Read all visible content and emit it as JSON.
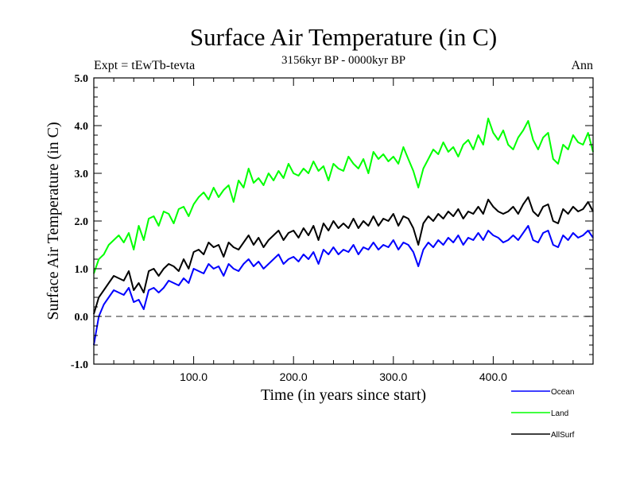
{
  "chart_data": {
    "type": "line",
    "title": "Surface Air Temperature (in C)",
    "subtitle": "3156kyr BP - 0000kyr BP",
    "annotation_left": "Expt = tEwTb-tevta",
    "annotation_right": "Ann",
    "xlabel": "Time (in years since start)",
    "ylabel": "Surface Air Temperature (in C)",
    "xlim": [
      0,
      500
    ],
    "ylim": [
      -1.0,
      5.0
    ],
    "x_major_ticks": [
      100,
      200,
      300,
      400
    ],
    "x_tick_labels": [
      "100.0",
      "200.0",
      "300.0",
      "400.0"
    ],
    "x_minor_step": 20,
    "y_major_ticks": [
      -1,
      0,
      1,
      2,
      3,
      4,
      5
    ],
    "y_tick_labels": [
      "-1.0",
      "0.0",
      "1.0",
      "2.0",
      "3.0",
      "4.0",
      "5.0"
    ],
    "y_minor_step": 0.2,
    "reference_line": {
      "y": 0.0,
      "style": "dashed",
      "color": "#555555"
    },
    "grid": false,
    "legend_position": "bottom-right, below plot",
    "x_step": 5,
    "x_start": 0,
    "series": [
      {
        "name": "Ocean",
        "color": "#0000ff",
        "values": [
          -0.6,
          0.0,
          0.25,
          0.4,
          0.55,
          0.5,
          0.45,
          0.6,
          0.3,
          0.35,
          0.15,
          0.55,
          0.6,
          0.5,
          0.6,
          0.75,
          0.7,
          0.65,
          0.8,
          0.7,
          1.0,
          0.95,
          0.9,
          1.1,
          1.0,
          1.05,
          0.85,
          1.1,
          1.0,
          0.95,
          1.1,
          1.2,
          1.05,
          1.15,
          1.0,
          1.1,
          1.2,
          1.3,
          1.1,
          1.2,
          1.25,
          1.15,
          1.3,
          1.2,
          1.35,
          1.1,
          1.4,
          1.3,
          1.45,
          1.3,
          1.4,
          1.35,
          1.5,
          1.3,
          1.45,
          1.4,
          1.55,
          1.4,
          1.5,
          1.45,
          1.6,
          1.4,
          1.55,
          1.5,
          1.35,
          1.05,
          1.4,
          1.55,
          1.45,
          1.6,
          1.5,
          1.65,
          1.55,
          1.7,
          1.5,
          1.65,
          1.6,
          1.75,
          1.6,
          1.8,
          1.7,
          1.65,
          1.55,
          1.6,
          1.7,
          1.6,
          1.75,
          1.9,
          1.6,
          1.55,
          1.75,
          1.8,
          1.5,
          1.45,
          1.7,
          1.6,
          1.75,
          1.65,
          1.7,
          1.8,
          1.65
        ]
      },
      {
        "name": "Land",
        "color": "#00ff00",
        "values": [
          0.9,
          1.2,
          1.3,
          1.5,
          1.6,
          1.7,
          1.55,
          1.75,
          1.4,
          1.9,
          1.6,
          2.05,
          2.1,
          1.9,
          2.2,
          2.15,
          1.95,
          2.25,
          2.3,
          2.1,
          2.35,
          2.5,
          2.6,
          2.45,
          2.7,
          2.5,
          2.65,
          2.75,
          2.4,
          2.85,
          2.7,
          3.1,
          2.8,
          2.9,
          2.75,
          3.0,
          2.85,
          3.05,
          2.9,
          3.2,
          3.0,
          2.95,
          3.1,
          3.0,
          3.25,
          3.05,
          3.15,
          2.85,
          3.2,
          3.1,
          3.05,
          3.35,
          3.2,
          3.1,
          3.3,
          3.0,
          3.45,
          3.3,
          3.4,
          3.25,
          3.35,
          3.2,
          3.55,
          3.3,
          3.05,
          2.7,
          3.1,
          3.3,
          3.5,
          3.4,
          3.65,
          3.45,
          3.55,
          3.35,
          3.6,
          3.7,
          3.5,
          3.8,
          3.6,
          4.15,
          3.85,
          3.7,
          3.9,
          3.6,
          3.5,
          3.75,
          3.9,
          4.1,
          3.7,
          3.5,
          3.75,
          3.85,
          3.3,
          3.2,
          3.6,
          3.5,
          3.8,
          3.65,
          3.6,
          3.85,
          3.45
        ]
      },
      {
        "name": "AllSurf",
        "color": "#000000",
        "values": [
          0.05,
          0.4,
          0.55,
          0.7,
          0.85,
          0.8,
          0.75,
          0.95,
          0.55,
          0.7,
          0.5,
          0.95,
          1.0,
          0.85,
          1.0,
          1.1,
          1.05,
          0.95,
          1.2,
          1.0,
          1.35,
          1.4,
          1.3,
          1.55,
          1.45,
          1.5,
          1.25,
          1.55,
          1.45,
          1.4,
          1.55,
          1.7,
          1.5,
          1.65,
          1.45,
          1.6,
          1.7,
          1.8,
          1.6,
          1.75,
          1.8,
          1.65,
          1.85,
          1.7,
          1.9,
          1.6,
          1.95,
          1.8,
          2.0,
          1.85,
          1.95,
          1.85,
          2.05,
          1.85,
          2.0,
          1.9,
          2.1,
          1.9,
          2.05,
          2.0,
          2.15,
          1.9,
          2.1,
          2.05,
          1.85,
          1.5,
          1.95,
          2.1,
          2.0,
          2.15,
          2.05,
          2.2,
          2.1,
          2.25,
          2.05,
          2.2,
          2.15,
          2.3,
          2.15,
          2.45,
          2.3,
          2.2,
          2.15,
          2.2,
          2.3,
          2.15,
          2.35,
          2.5,
          2.2,
          2.1,
          2.3,
          2.35,
          2.0,
          1.95,
          2.25,
          2.15,
          2.3,
          2.2,
          2.25,
          2.4,
          2.2
        ]
      }
    ],
    "legend": [
      {
        "label": "Ocean",
        "color": "#0000ff"
      },
      {
        "label": "Land",
        "color": "#00ff00"
      },
      {
        "label": "AllSurf",
        "color": "#000000"
      }
    ]
  }
}
